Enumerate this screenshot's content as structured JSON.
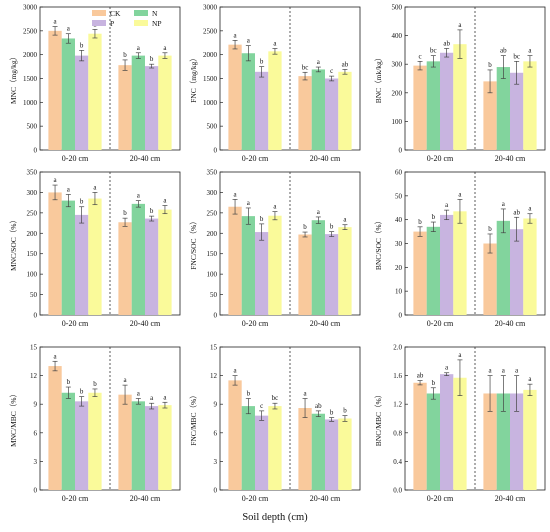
{
  "figure": {
    "x_title": "Soil depth (cm)",
    "groups": [
      "0-20 cm",
      "20-40 cm"
    ],
    "legend": [
      {
        "name": "CK",
        "color": "#f9c99c"
      },
      {
        "name": "N",
        "color": "#82d49d"
      },
      {
        "name": "P",
        "color": "#c8b4e0"
      },
      {
        "name": "NP",
        "color": "#fafa9a"
      }
    ]
  },
  "chart_data": [
    {
      "type": "bar",
      "ylabel": "MNC（mg/kg）",
      "ylim": [
        0,
        3000
      ],
      "yticks": [
        0,
        500,
        1000,
        1500,
        2000,
        2500,
        3000
      ],
      "categories": [
        "0-20 cm",
        "20-40 cm"
      ],
      "series": [
        {
          "name": "CK",
          "values": [
            2500,
            1780
          ],
          "errors": [
            90,
            110
          ],
          "letters": [
            "a",
            "b"
          ]
        },
        {
          "name": "N",
          "values": [
            2340,
            1980
          ],
          "errors": [
            100,
            60
          ],
          "letters": [
            "a",
            "a"
          ]
        },
        {
          "name": "P",
          "values": [
            1980,
            1760
          ],
          "errors": [
            110,
            40
          ],
          "letters": [
            "b",
            "b"
          ]
        },
        {
          "name": "NP",
          "values": [
            2440,
            1980
          ],
          "errors": [
            90,
            60
          ],
          "letters": [
            "a",
            "a"
          ]
        }
      ],
      "legend": "top-left"
    },
    {
      "type": "bar",
      "ylabel": "FNC（mg/kg）",
      "ylim": [
        0,
        3000
      ],
      "yticks": [
        0,
        500,
        1000,
        1500,
        2000,
        2500,
        3000
      ],
      "categories": [
        "0-20 cm",
        "20-40 cm"
      ],
      "series": [
        {
          "name": "CK",
          "values": [
            2210,
            1550
          ],
          "errors": [
            90,
            80
          ],
          "letters": [
            "a",
            "bc"
          ]
        },
        {
          "name": "N",
          "values": [
            2030,
            1690
          ],
          "errors": [
            160,
            50
          ],
          "letters": [
            "a",
            "a"
          ]
        },
        {
          "name": "P",
          "values": [
            1640,
            1500
          ],
          "errors": [
            110,
            50
          ],
          "letters": [
            "b",
            "c"
          ]
        },
        {
          "name": "NP",
          "values": [
            2070,
            1640
          ],
          "errors": [
            60,
            50
          ],
          "letters": [
            "a",
            "ab"
          ]
        }
      ]
    },
    {
      "type": "bar",
      "ylabel": "BNC（mk/kg）",
      "ylim": [
        0,
        500
      ],
      "yticks": [
        0,
        100,
        200,
        300,
        400,
        500
      ],
      "categories": [
        "0-20 cm",
        "20-40 cm"
      ],
      "series": [
        {
          "name": "CK",
          "values": [
            295,
            240
          ],
          "errors": [
            15,
            40
          ],
          "letters": [
            "c",
            "b"
          ]
        },
        {
          "name": "N",
          "values": [
            310,
            290
          ],
          "errors": [
            20,
            40
          ],
          "letters": [
            "bc",
            "ab"
          ]
        },
        {
          "name": "P",
          "values": [
            340,
            270
          ],
          "errors": [
            15,
            40
          ],
          "letters": [
            "ab",
            "bc"
          ]
        },
        {
          "name": "NP",
          "values": [
            370,
            310
          ],
          "errors": [
            50,
            20
          ],
          "letters": [
            "a",
            "a"
          ]
        }
      ]
    },
    {
      "type": "bar",
      "ylabel": "MNC/SOC（%）",
      "ylim": [
        0,
        350
      ],
      "yticks": [
        0,
        50,
        100,
        150,
        200,
        250,
        300,
        350
      ],
      "categories": [
        "0-20 cm",
        "20-40 cm"
      ],
      "series": [
        {
          "name": "CK",
          "values": [
            300,
            227
          ],
          "errors": [
            18,
            10
          ],
          "letters": [
            "a",
            "b"
          ]
        },
        {
          "name": "N",
          "values": [
            280,
            272
          ],
          "errors": [
            15,
            8
          ],
          "letters": [
            "a",
            "a"
          ]
        },
        {
          "name": "P",
          "values": [
            245,
            236
          ],
          "errors": [
            20,
            6
          ],
          "letters": [
            "b",
            "b"
          ]
        },
        {
          "name": "NP",
          "values": [
            285,
            258
          ],
          "errors": [
            15,
            10
          ],
          "letters": [
            "a",
            "a"
          ]
        }
      ]
    },
    {
      "type": "bar",
      "ylabel": "FNC/SOC（%）",
      "ylim": [
        0,
        350
      ],
      "yticks": [
        0,
        50,
        100,
        150,
        200,
        250,
        300,
        350
      ],
      "categories": [
        "0-20 cm",
        "20-40 cm"
      ],
      "series": [
        {
          "name": "CK",
          "values": [
            265,
            197
          ],
          "errors": [
            18,
            6
          ],
          "letters": [
            "a",
            "b"
          ]
        },
        {
          "name": "N",
          "values": [
            242,
            232
          ],
          "errors": [
            20,
            8
          ],
          "letters": [
            "a",
            "a"
          ]
        },
        {
          "name": "P",
          "values": [
            203,
            198
          ],
          "errors": [
            20,
            6
          ],
          "letters": [
            "b",
            "b"
          ]
        },
        {
          "name": "NP",
          "values": [
            243,
            215
          ],
          "errors": [
            10,
            6
          ],
          "letters": [
            "a",
            "a"
          ]
        }
      ]
    },
    {
      "type": "bar",
      "ylabel": "BNC/SOC（%）",
      "ylim": [
        0,
        60
      ],
      "yticks": [
        0,
        10,
        20,
        30,
        40,
        50,
        60
      ],
      "categories": [
        "0-20 cm",
        "20-40 cm"
      ],
      "series": [
        {
          "name": "CK",
          "values": [
            35,
            30
          ],
          "errors": [
            2,
            4
          ],
          "letters": [
            "b",
            "b"
          ]
        },
        {
          "name": "N",
          "values": [
            37,
            39.5
          ],
          "errors": [
            2,
            5
          ],
          "letters": [
            "b",
            "a"
          ]
        },
        {
          "name": "P",
          "values": [
            42,
            36
          ],
          "errors": [
            2,
            5
          ],
          "letters": [
            "a",
            "ab"
          ]
        },
        {
          "name": "NP",
          "values": [
            43.5,
            40.5
          ],
          "errors": [
            5,
            2
          ],
          "letters": [
            "a",
            "a"
          ]
        }
      ]
    },
    {
      "type": "bar",
      "ylabel": "MNC/MBC（%）",
      "ylim": [
        0,
        15
      ],
      "yticks": [
        0,
        3,
        6,
        9,
        12,
        15
      ],
      "categories": [
        "0-20 cm",
        "20-40 cm"
      ],
      "series": [
        {
          "name": "CK",
          "values": [
            13.0,
            10.0
          ],
          "errors": [
            0.5,
            1.0
          ],
          "letters": [
            "a",
            "a"
          ]
        },
        {
          "name": "N",
          "values": [
            10.2,
            9.3
          ],
          "errors": [
            0.6,
            0.3
          ],
          "letters": [
            "b",
            "a"
          ]
        },
        {
          "name": "P",
          "values": [
            9.3,
            8.8
          ],
          "errors": [
            0.5,
            0.3
          ],
          "letters": [
            "b",
            "a"
          ]
        },
        {
          "name": "NP",
          "values": [
            10.2,
            8.9
          ],
          "errors": [
            0.4,
            0.3
          ],
          "letters": [
            "b",
            "a"
          ]
        }
      ]
    },
    {
      "type": "bar",
      "ylabel": "FNC/MBC（%）",
      "ylim": [
        0,
        15
      ],
      "yticks": [
        0,
        3,
        6,
        9,
        12,
        15
      ],
      "categories": [
        "0-20 cm",
        "20-40 cm"
      ],
      "series": [
        {
          "name": "CK",
          "values": [
            11.5,
            8.6
          ],
          "errors": [
            0.5,
            1.0
          ],
          "letters": [
            "a",
            "a"
          ]
        },
        {
          "name": "N",
          "values": [
            8.8,
            8.0
          ],
          "errors": [
            0.8,
            0.3
          ],
          "letters": [
            "b",
            "ab"
          ]
        },
        {
          "name": "P",
          "values": [
            7.8,
            7.4
          ],
          "errors": [
            0.5,
            0.2
          ],
          "letters": [
            "c",
            "b"
          ]
        },
        {
          "name": "NP",
          "values": [
            8.8,
            7.5
          ],
          "errors": [
            0.3,
            0.3
          ],
          "letters": [
            "bc",
            "b"
          ]
        }
      ]
    },
    {
      "type": "bar",
      "ylabel": "BNC/MBC（%）",
      "ylim": [
        0,
        2.0
      ],
      "yticks": [
        0.0,
        0.4,
        0.8,
        1.2,
        1.6,
        2.0
      ],
      "categories": [
        "0-20 cm",
        "20-40 cm"
      ],
      "series": [
        {
          "name": "CK",
          "values": [
            1.5,
            1.35
          ],
          "errors": [
            0.03,
            0.25
          ],
          "letters": [
            "ab",
            "a"
          ]
        },
        {
          "name": "N",
          "values": [
            1.35,
            1.35
          ],
          "errors": [
            0.08,
            0.25
          ],
          "letters": [
            "b",
            "a"
          ]
        },
        {
          "name": "P",
          "values": [
            1.62,
            1.35
          ],
          "errors": [
            0.02,
            0.25
          ],
          "letters": [
            "a",
            "a"
          ]
        },
        {
          "name": "NP",
          "values": [
            1.57,
            1.4
          ],
          "errors": [
            0.25,
            0.08
          ],
          "letters": [
            "a",
            "a"
          ]
        }
      ]
    }
  ]
}
